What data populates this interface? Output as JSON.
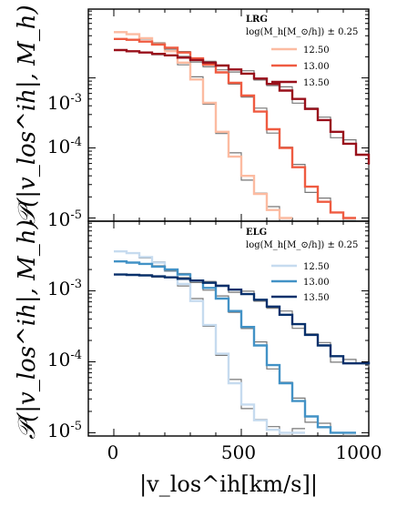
{
  "chart_data": [
    {
      "type": "line",
      "panel": "top",
      "legend_title": "LRG",
      "legend_subtitle": "log(M_h[M_⊙/h]) ± 0.25",
      "legend_placement": "top-right",
      "ylabel": "𝒫(|v_los^ih|, M_h)",
      "yscale": "log",
      "xlim": [
        -100,
        1000
      ],
      "ylim": [
        9e-06,
        0.0096
      ],
      "ytick_labels": [
        "10-5",
        "10-4",
        "10-3"
      ],
      "series": [
        {
          "name": "12.50",
          "color": "#fcbba1",
          "x": [
            0,
            50,
            100,
            150,
            200,
            250,
            300,
            350,
            400,
            450,
            500,
            550,
            600,
            650
          ],
          "y": [
            0.0045,
            0.0042,
            0.0037,
            0.0031,
            0.0024,
            0.00165,
            0.00095,
            0.00044,
            0.00017,
            7.5e-05,
            4e-05,
            2.2e-05,
            1.3e-05,
            1e-05
          ]
        },
        {
          "name": "13.00",
          "color": "#ef5b41",
          "x": [
            0,
            50,
            100,
            150,
            200,
            250,
            300,
            350,
            400,
            450,
            500,
            550,
            600,
            650,
            700,
            750,
            800,
            850,
            900
          ],
          "y": [
            0.0036,
            0.0035,
            0.0033,
            0.003,
            0.0027,
            0.0023,
            0.0019,
            0.00155,
            0.0012,
            0.00085,
            0.00056,
            0.00033,
            0.000185,
            0.0001,
            5.3e-05,
            2.8e-05,
            1.7e-05,
            1.2e-05,
            1e-05
          ]
        },
        {
          "name": "13.50",
          "color": "#99101b",
          "x": [
            0,
            50,
            100,
            150,
            200,
            250,
            300,
            350,
            400,
            450,
            500,
            550,
            600,
            650,
            700,
            750,
            800,
            850,
            900,
            950,
            1000
          ],
          "y": [
            0.0025,
            0.0024,
            0.0023,
            0.0022,
            0.0021,
            0.00195,
            0.0018,
            0.00165,
            0.0015,
            0.00132,
            0.00115,
            0.00098,
            0.00082,
            0.00066,
            0.0005,
            0.00036,
            0.00025,
            0.00017,
            0.000115,
            8e-05,
            5.8e-05
          ]
        }
      ]
    },
    {
      "type": "line",
      "panel": "bottom",
      "legend_title": "ELG",
      "legend_subtitle": "log(M_h[M_⊙/h]) ± 0.25",
      "legend_placement": "top-right",
      "ylabel": "𝒫(|v_los^ih|, M_h)",
      "xlabel": "|v_los^ih[km/s]|",
      "yscale": "log",
      "xlim": [
        -100,
        1000
      ],
      "ylim": [
        9e-06,
        0.0096
      ],
      "xtick_labels": [
        "0",
        "500",
        "1000"
      ],
      "ytick_labels": [
        "10-5",
        "10-4",
        "10-3"
      ],
      "series": [
        {
          "name": "12.50",
          "color": "#c6dbef",
          "x": [
            0,
            50,
            100,
            150,
            200,
            250,
            300,
            350,
            400,
            450,
            500,
            550,
            600,
            650,
            700
          ],
          "y": [
            0.0036,
            0.0034,
            0.003,
            0.0025,
            0.0019,
            0.00125,
            0.00072,
            0.00033,
            0.00013,
            5e-05,
            2.5e-05,
            1.5e-05,
            1.1e-05,
            1e-05,
            1e-05
          ]
        },
        {
          "name": "13.00",
          "color": "#4292c6",
          "x": [
            0,
            50,
            100,
            150,
            200,
            250,
            300,
            350,
            400,
            450,
            500,
            550,
            600,
            650,
            700,
            750,
            800,
            850,
            900
          ],
          "y": [
            0.0026,
            0.0025,
            0.0024,
            0.0022,
            0.002,
            0.0017,
            0.0014,
            0.0011,
            0.00078,
            0.00052,
            0.00031,
            0.00017,
            9e-05,
            5e-05,
            2.8e-05,
            1.7e-05,
            1.2e-05,
            1e-05,
            1e-05
          ]
        },
        {
          "name": "13.50",
          "color": "#08306b",
          "x": [
            0,
            50,
            100,
            150,
            200,
            250,
            300,
            350,
            400,
            450,
            500,
            550,
            600,
            650,
            700,
            750,
            800,
            850,
            900,
            950,
            1000
          ],
          "y": [
            0.0017,
            0.00168,
            0.00165,
            0.0016,
            0.00155,
            0.00148,
            0.0014,
            0.0013,
            0.00118,
            0.00104,
            0.0009,
            0.00075,
            0.0006,
            0.00046,
            0.00034,
            0.00024,
            0.00017,
            0.00012,
            9.5e-05,
            9.5e-05,
            0.0001
          ]
        }
      ]
    }
  ]
}
